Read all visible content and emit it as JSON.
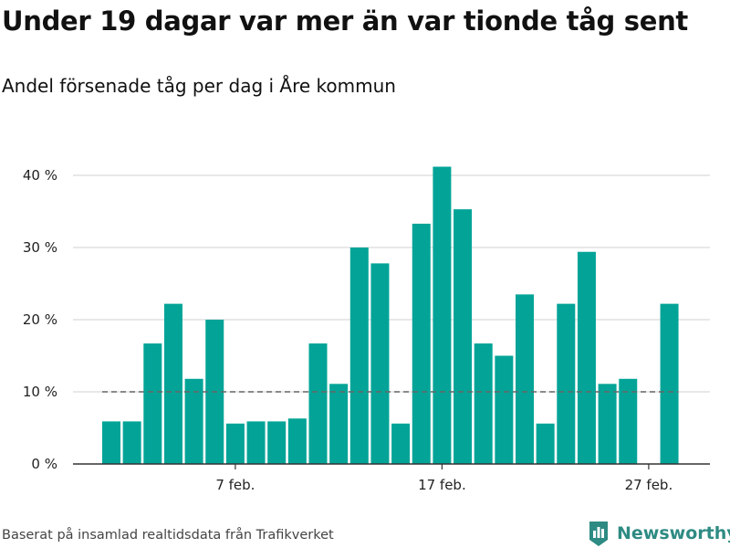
{
  "title": "Under 19 dagar var mer än var tionde tåg sent",
  "subtitle": "Andel försenade tåg per dag i Åre kommun",
  "footer": "Baserat på insamlad realtidsdata från Trafikverket",
  "brand": {
    "name": "Newsworthy",
    "icon": "newsworthy-logo-icon",
    "color": "#2e8b83"
  },
  "colors": {
    "bar": "#03a497",
    "reference_line": "#666666",
    "grid": "#d9d9d9",
    "axis": "#333333"
  },
  "chart_data": {
    "type": "bar",
    "title": "Under 19 dagar var mer än var tionde tåg sent",
    "subtitle": "Andel försenade tåg per dag i Åre kommun",
    "xlabel": "",
    "ylabel": "",
    "x": [
      "2024-02-01",
      "2024-02-02",
      "2024-02-03",
      "2024-02-04",
      "2024-02-05",
      "2024-02-06",
      "2024-02-07",
      "2024-02-08",
      "2024-02-09",
      "2024-02-10",
      "2024-02-11",
      "2024-02-12",
      "2024-02-13",
      "2024-02-14",
      "2024-02-15",
      "2024-02-16",
      "2024-02-17",
      "2024-02-18",
      "2024-02-19",
      "2024-02-20",
      "2024-02-21",
      "2024-02-22",
      "2024-02-23",
      "2024-02-24",
      "2024-02-25",
      "2024-02-26",
      "2024-02-27",
      "2024-02-28"
    ],
    "values": [
      5.9,
      5.9,
      16.7,
      22.2,
      11.8,
      20.0,
      5.6,
      5.9,
      5.9,
      6.3,
      16.7,
      11.1,
      30.0,
      27.8,
      5.6,
      33.3,
      41.2,
      35.3,
      16.7,
      15.0,
      23.5,
      5.6,
      22.2,
      29.4,
      11.1,
      11.8,
      0,
      22.2
    ],
    "reference_line": {
      "y": 10,
      "style": "dashed"
    },
    "x_ticks": [
      {
        "label": "7 feb.",
        "date": "2024-02-07"
      },
      {
        "label": "17 feb.",
        "date": "2024-02-17"
      },
      {
        "label": "27 feb.",
        "date": "2024-02-27"
      }
    ],
    "y_ticks": [
      {
        "value": 0,
        "label": "0 %"
      },
      {
        "value": 10,
        "label": "10 %"
      },
      {
        "value": 20,
        "label": "20 %"
      },
      {
        "value": 30,
        "label": "30 %"
      },
      {
        "value": 40,
        "label": "40 %"
      }
    ],
    "ylim": [
      0,
      40
    ],
    "grid": true,
    "legend": "none"
  }
}
